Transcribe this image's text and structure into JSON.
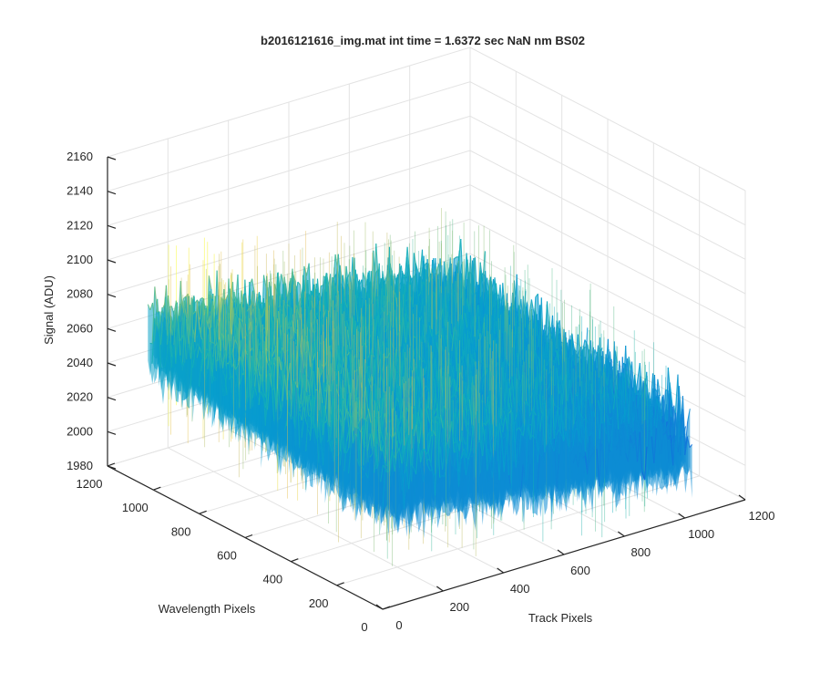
{
  "chart_data": {
    "type": "surface",
    "title": "b2016121616_img.mat int time = 1.6372 sec  NaN nm BS02",
    "xlabel": "Track Pixels",
    "ylabel": "Wavelength Pixels",
    "zlabel": "Signal (ADU)",
    "xlim": [
      0,
      1200
    ],
    "ylim": [
      0,
      1200
    ],
    "zlim": [
      1980,
      2160
    ],
    "xticks": [
      0,
      200,
      400,
      600,
      800,
      1000,
      1200
    ],
    "yticks": [
      0,
      200,
      400,
      600,
      800,
      1000,
      1200
    ],
    "zticks": [
      1980,
      2000,
      2020,
      2040,
      2060,
      2080,
      2100,
      2120,
      2140,
      2160
    ],
    "surface_extent": {
      "x": [
        0,
        1024
      ],
      "y": [
        0,
        1024
      ]
    },
    "signal_profile": {
      "description": "noisy detector frame, higher signal at low track / high wavelength corner",
      "corner_means": {
        "x0_y0": 2060,
        "x0_y1024": 2075,
        "x1024_y0": 2030,
        "x1024_y1024": 2045
      },
      "noise_amplitude": 25,
      "colormap": "parula",
      "color_range": [
        1990,
        2120
      ]
    },
    "grid": true,
    "view": "3d-default"
  }
}
